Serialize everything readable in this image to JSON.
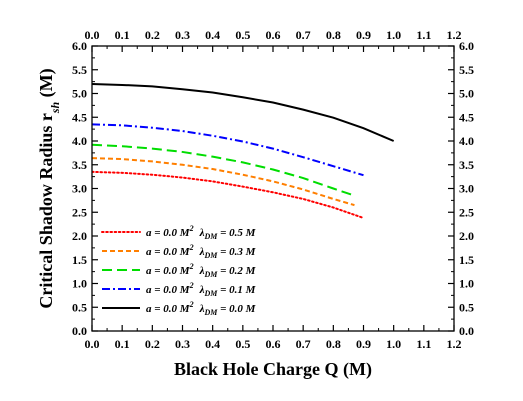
{
  "chart_data": {
    "type": "line",
    "xlabel": "Black Hole Charge Q (M)",
    "ylabel": "Critical Shadow Radius r",
    "ylabel_sub": "sh",
    "ylabel_unit": " (M)",
    "xlim": [
      0.0,
      1.2
    ],
    "ylim": [
      0.0,
      6.0
    ],
    "x_ticks": [
      "0.0",
      "0.1",
      "0.2",
      "0.3",
      "0.4",
      "0.5",
      "0.6",
      "0.7",
      "0.8",
      "0.9",
      "1.0",
      "1.1",
      "1.2"
    ],
    "y_ticks": [
      "0.0",
      "0.5",
      "1.0",
      "1.5",
      "2.0",
      "2.5",
      "3.0",
      "3.5",
      "4.0",
      "4.5",
      "5.0",
      "5.5",
      "6.0"
    ],
    "mirror_axes": true,
    "grid": false,
    "legend_position": "lower-left",
    "series": [
      {
        "legend_a": "a = 0.0 M",
        "legend_a_sup": "2",
        "legend_lambda": "λ",
        "legend_lambda_sub": "DM",
        "legend_value": " = 0.5 M",
        "color": "#ff0000",
        "dash": "dotted",
        "x": [
          0.0,
          0.1,
          0.2,
          0.3,
          0.4,
          0.5,
          0.6,
          0.7,
          0.8,
          0.9
        ],
        "y": [
          3.35,
          3.33,
          3.29,
          3.23,
          3.15,
          3.04,
          2.92,
          2.78,
          2.6,
          2.38
        ]
      },
      {
        "legend_a": "a = 0.0 M",
        "legend_a_sup": "2",
        "legend_lambda": "λ",
        "legend_lambda_sub": "DM",
        "legend_value": " = 0.3 M",
        "color": "#ff7f00",
        "dash": "short-dash",
        "x": [
          0.0,
          0.1,
          0.2,
          0.3,
          0.4,
          0.5,
          0.6,
          0.7,
          0.8,
          0.87
        ],
        "y": [
          3.64,
          3.62,
          3.57,
          3.5,
          3.41,
          3.29,
          3.15,
          2.98,
          2.78,
          2.65
        ]
      },
      {
        "legend_a": "a = 0.0 M",
        "legend_a_sup": "2",
        "legend_lambda": "λ",
        "legend_lambda_sub": "DM",
        "legend_value": " = 0.2 M",
        "color": "#00dd00",
        "dash": "long-dash",
        "x": [
          0.0,
          0.1,
          0.2,
          0.3,
          0.4,
          0.5,
          0.6,
          0.7,
          0.8,
          0.87
        ],
        "y": [
          3.92,
          3.89,
          3.84,
          3.77,
          3.67,
          3.55,
          3.4,
          3.22,
          3.0,
          2.85
        ]
      },
      {
        "legend_a": "a = 0.0 M",
        "legend_a_sup": "2",
        "legend_lambda": "λ",
        "legend_lambda_sub": "DM",
        "legend_value": " = 0.1 M",
        "color": "#0000ff",
        "dash": "dash-dot",
        "x": [
          0.0,
          0.1,
          0.2,
          0.3,
          0.4,
          0.5,
          0.6,
          0.7,
          0.8,
          0.9
        ],
        "y": [
          4.35,
          4.33,
          4.28,
          4.21,
          4.11,
          3.99,
          3.84,
          3.66,
          3.47,
          3.28
        ]
      },
      {
        "legend_a": "a = 0.0 M",
        "legend_a_sup": "2",
        "legend_lambda": "λ",
        "legend_lambda_sub": "DM",
        "legend_value": " = 0.0 M",
        "color": "#000000",
        "dash": "solid",
        "x": [
          0.0,
          0.1,
          0.2,
          0.3,
          0.4,
          0.5,
          0.6,
          0.7,
          0.8,
          0.9,
          1.0
        ],
        "y": [
          5.2,
          5.18,
          5.15,
          5.09,
          5.02,
          4.92,
          4.81,
          4.66,
          4.49,
          4.27,
          4.0
        ]
      }
    ]
  }
}
